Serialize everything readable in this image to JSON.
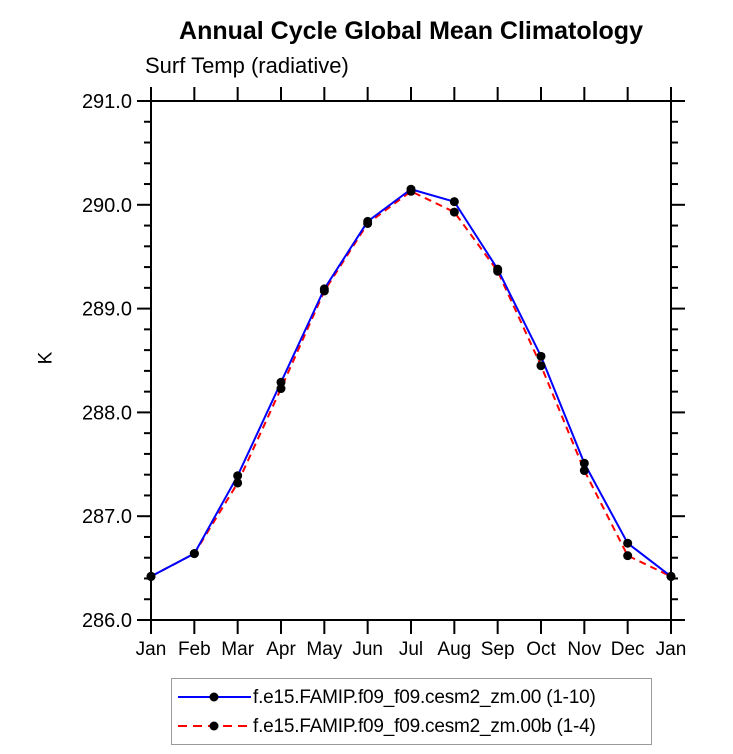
{
  "title": "Annual Cycle Global Mean Climatology",
  "subtitle": "Surf Temp (radiative)",
  "chart_data": {
    "type": "line",
    "title": "Annual Cycle Global Mean Climatology",
    "subtitle": "Surf Temp (radiative)",
    "xlabel": "",
    "ylabel": "K",
    "categories": [
      "Jan",
      "Feb",
      "Mar",
      "Apr",
      "May",
      "Jun",
      "Jul",
      "Aug",
      "Sep",
      "Oct",
      "Nov",
      "Dec",
      "Jan"
    ],
    "ylim": [
      286.0,
      291.0
    ],
    "y_major_step": 1.0,
    "y_minor_step": 0.2,
    "y_tick_labels": [
      "286.0",
      "287.0",
      "288.0",
      "289.0",
      "290.0",
      "291.0"
    ],
    "grid": false,
    "legend_position": "bottom",
    "marker": "filled-circle",
    "marker_color": "#000000",
    "axis_color": "#000000",
    "series": [
      {
        "name": "f.e15.FAMIP.f09_f09.cesm2_zm.00 (1-10)",
        "color": "#0000ff",
        "style": "solid",
        "values": [
          286.42,
          286.64,
          287.39,
          288.29,
          289.19,
          289.84,
          290.15,
          290.03,
          289.38,
          288.54,
          287.51,
          286.74,
          286.42
        ]
      },
      {
        "name": "f.e15.FAMIP.f09_f09.cesm2_zm.00b (1-4)",
        "color": "#ff0000",
        "style": "dashed",
        "values": [
          286.42,
          286.64,
          287.32,
          288.23,
          289.17,
          289.82,
          290.13,
          289.93,
          289.36,
          288.45,
          287.44,
          286.62,
          286.42
        ]
      }
    ]
  }
}
